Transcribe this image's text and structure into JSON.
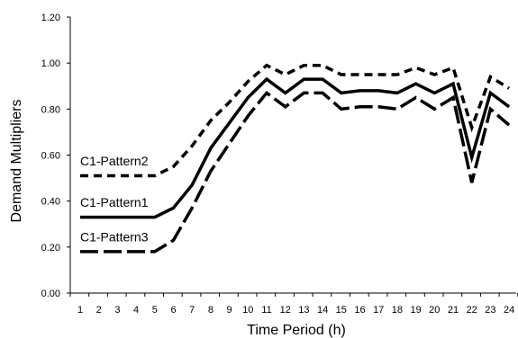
{
  "chart_data": {
    "type": "line",
    "title": "",
    "xlabel": "Time Period (h)",
    "ylabel": "Demand Multipliers",
    "ylim": [
      0,
      1.2
    ],
    "yticks": [
      "0.00",
      "0.20",
      "0.40",
      "0.60",
      "0.80",
      "1.00",
      "1.20"
    ],
    "x": [
      1,
      2,
      3,
      4,
      5,
      6,
      7,
      8,
      9,
      10,
      11,
      12,
      13,
      14,
      15,
      16,
      17,
      18,
      19,
      20,
      21,
      22,
      23,
      24
    ],
    "grid": false,
    "legend": "inline labels",
    "series": [
      {
        "name": "C1-Pattern2",
        "style": "dashed",
        "values": [
          0.51,
          0.51,
          0.51,
          0.51,
          0.51,
          0.55,
          0.64,
          0.75,
          0.83,
          0.92,
          0.99,
          0.95,
          0.99,
          0.99,
          0.95,
          0.95,
          0.95,
          0.95,
          0.98,
          0.95,
          0.98,
          0.72,
          0.94,
          0.89
        ]
      },
      {
        "name": "C1-Pattern1",
        "style": "solid",
        "values": [
          0.33,
          0.33,
          0.33,
          0.33,
          0.33,
          0.37,
          0.47,
          0.63,
          0.74,
          0.85,
          0.93,
          0.87,
          0.93,
          0.93,
          0.87,
          0.88,
          0.88,
          0.87,
          0.91,
          0.87,
          0.91,
          0.59,
          0.87,
          0.81
        ]
      },
      {
        "name": "C1-Pattern3",
        "style": "long-dash",
        "values": [
          0.18,
          0.18,
          0.18,
          0.18,
          0.18,
          0.23,
          0.37,
          0.53,
          0.65,
          0.77,
          0.87,
          0.81,
          0.87,
          0.87,
          0.8,
          0.81,
          0.81,
          0.8,
          0.85,
          0.8,
          0.85,
          0.48,
          0.8,
          0.73
        ]
      }
    ],
    "series_label_positions": [
      {
        "name": "C1-Pattern2",
        "at_x": 1,
        "at_y": 0.555
      },
      {
        "name": "C1-Pattern1",
        "at_x": 1,
        "at_y": 0.375
      },
      {
        "name": "C1-Pattern3",
        "at_x": 1,
        "at_y": 0.225
      }
    ]
  }
}
